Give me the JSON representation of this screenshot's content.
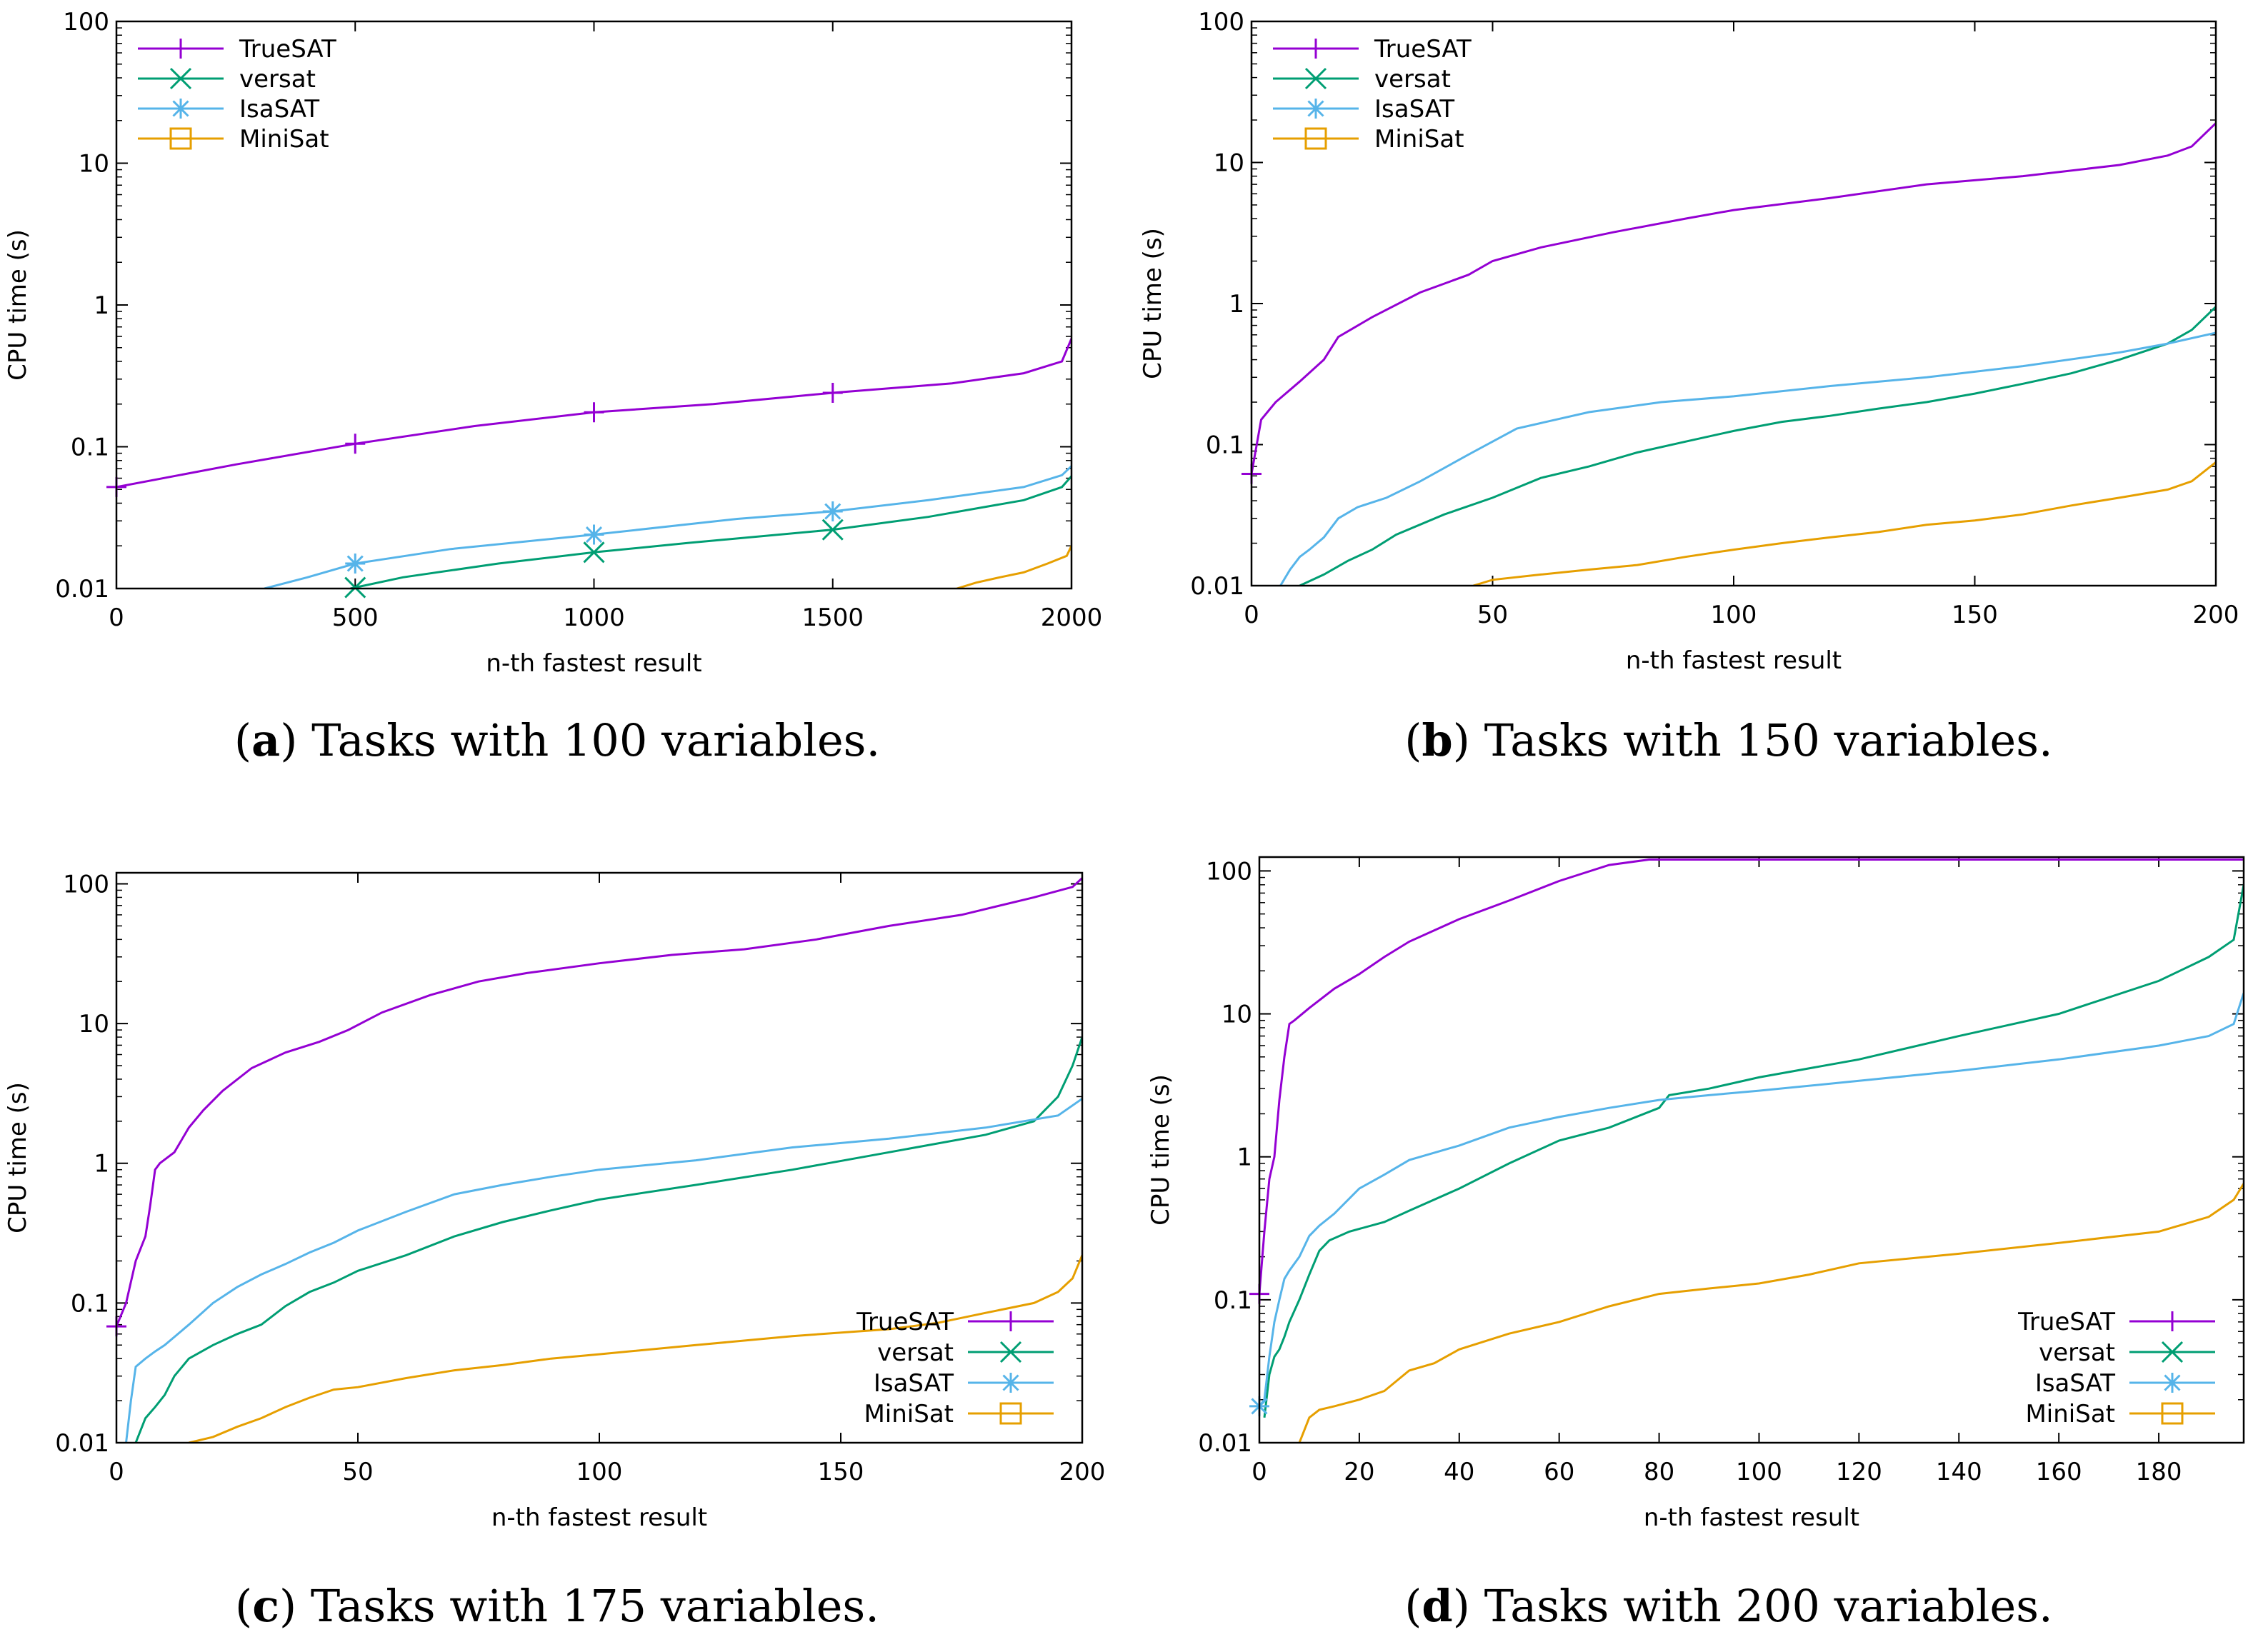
{
  "colors": {
    "TrueSAT": "#9400d3",
    "versat": "#009e73",
    "IsaSAT": "#56b4e9",
    "MiniSat": "#e69f00"
  },
  "chart_data": [
    {
      "type": "line",
      "panel": "a",
      "caption_letter": "a",
      "caption_text": "Tasks with 100 variables.",
      "xlabel": "n-th fastest result",
      "ylabel": "CPU time (s)",
      "xlim": [
        0,
        2000
      ],
      "ylim": [
        0.01,
        100
      ],
      "yscale": "log",
      "xticks": [
        0,
        500,
        1000,
        1500,
        2000
      ],
      "xtick_labels": [
        "0",
        "500",
        "1000",
        "1500",
        "2000"
      ],
      "yticks": [
        0.01,
        0.1,
        1,
        10,
        100
      ],
      "ytick_labels": [
        "0.01",
        "0.1",
        "1",
        "10",
        "100"
      ],
      "legend_position": "top-left",
      "series": [
        {
          "name": "TrueSAT",
          "marker": "plus",
          "x": [
            0,
            250,
            500,
            750,
            1000,
            1250,
            1500,
            1750,
            1900,
            1980,
            2000
          ],
          "y": [
            0.052,
            0.075,
            0.105,
            0.14,
            0.175,
            0.2,
            0.24,
            0.28,
            0.33,
            0.4,
            0.58
          ],
          "marker_x": [
            0,
            500,
            1000,
            1500
          ]
        },
        {
          "name": "versat",
          "marker": "x",
          "x": [
            490,
            600,
            800,
            1000,
            1200,
            1500,
            1700,
            1900,
            1980,
            2000
          ],
          "y": [
            0.01,
            0.012,
            0.015,
            0.018,
            0.021,
            0.026,
            0.032,
            0.042,
            0.052,
            0.062
          ],
          "marker_x": [
            500,
            1000,
            1500
          ]
        },
        {
          "name": "IsaSAT",
          "marker": "star",
          "x": [
            310,
            400,
            500,
            700,
            1000,
            1300,
            1500,
            1700,
            1900,
            1980,
            2000
          ],
          "y": [
            0.01,
            0.012,
            0.015,
            0.019,
            0.024,
            0.031,
            0.035,
            0.042,
            0.052,
            0.063,
            0.073
          ],
          "marker_x": [
            500,
            1000,
            1500
          ]
        },
        {
          "name": "MiniSat",
          "marker": "square",
          "x": [
            1760,
            1800,
            1850,
            1900,
            1950,
            1990,
            2000
          ],
          "y": [
            0.01,
            0.011,
            0.012,
            0.013,
            0.015,
            0.017,
            0.02
          ],
          "marker_x": []
        }
      ]
    },
    {
      "type": "line",
      "panel": "b",
      "caption_letter": "b",
      "caption_text": "Tasks with 150 variables.",
      "xlabel": "n-th fastest result",
      "ylabel": "CPU time (s)",
      "xlim": [
        0,
        200
      ],
      "ylim": [
        0.01,
        100
      ],
      "yscale": "log",
      "xticks": [
        0,
        50,
        100,
        150,
        200
      ],
      "xtick_labels": [
        "0",
        "50",
        "100",
        "150",
        "200"
      ],
      "yticks": [
        0.01,
        0.1,
        1,
        10,
        100
      ],
      "ytick_labels": [
        "0.01",
        "0.1",
        "1",
        "10",
        "100"
      ],
      "legend_position": "top-left",
      "series": [
        {
          "name": "TrueSAT",
          "marker": "plus",
          "x": [
            0,
            2,
            5,
            10,
            15,
            18,
            25,
            35,
            45,
            50,
            60,
            75,
            90,
            100,
            120,
            140,
            160,
            180,
            190,
            195,
            200
          ],
          "y": [
            0.062,
            0.15,
            0.2,
            0.28,
            0.4,
            0.58,
            0.8,
            1.2,
            1.6,
            2.0,
            2.5,
            3.2,
            4.0,
            4.6,
            5.6,
            7.0,
            8.0,
            9.6,
            11.2,
            13.0,
            19.0
          ],
          "marker_x": [
            0
          ]
        },
        {
          "name": "versat",
          "marker": "x",
          "x": [
            10,
            15,
            20,
            25,
            30,
            40,
            50,
            60,
            70,
            80,
            90,
            100,
            110,
            120,
            130,
            140,
            150,
            160,
            170,
            180,
            190,
            195,
            200
          ],
          "y": [
            0.01,
            0.012,
            0.015,
            0.018,
            0.023,
            0.032,
            0.042,
            0.058,
            0.07,
            0.088,
            0.105,
            0.125,
            0.145,
            0.16,
            0.18,
            0.2,
            0.23,
            0.27,
            0.32,
            0.4,
            0.52,
            0.65,
            0.95
          ],
          "marker_x": []
        },
        {
          "name": "IsaSAT",
          "marker": "star",
          "x": [
            6,
            8,
            10,
            12,
            15,
            18,
            22,
            28,
            35,
            45,
            55,
            70,
            85,
            100,
            120,
            140,
            160,
            180,
            190,
            200
          ],
          "y": [
            0.01,
            0.013,
            0.016,
            0.018,
            0.022,
            0.03,
            0.036,
            0.042,
            0.055,
            0.085,
            0.13,
            0.17,
            0.2,
            0.22,
            0.26,
            0.3,
            0.36,
            0.45,
            0.52,
            0.62
          ],
          "marker_x": []
        },
        {
          "name": "MiniSat",
          "marker": "square",
          "x": [
            46,
            50,
            60,
            70,
            80,
            90,
            100,
            110,
            120,
            130,
            140,
            150,
            160,
            170,
            180,
            190,
            195,
            200
          ],
          "y": [
            0.01,
            0.011,
            0.012,
            0.013,
            0.014,
            0.016,
            0.018,
            0.02,
            0.022,
            0.024,
            0.027,
            0.029,
            0.032,
            0.037,
            0.042,
            0.048,
            0.055,
            0.075
          ],
          "marker_x": []
        }
      ]
    },
    {
      "type": "line",
      "panel": "c",
      "caption_letter": "c",
      "caption_text": "Tasks with 175 variables.",
      "xlabel": "n-th fastest result",
      "ylabel": "CPU time (s)",
      "xlim": [
        0,
        200
      ],
      "ylim": [
        0.01,
        120
      ],
      "yscale": "log",
      "xticks": [
        0,
        50,
        100,
        150,
        200
      ],
      "xtick_labels": [
        "0",
        "50",
        "100",
        "150",
        "200"
      ],
      "yticks": [
        0.01,
        0.1,
        1,
        10,
        100
      ],
      "ytick_labels": [
        "0.01",
        "0.1",
        "1",
        "10",
        "100"
      ],
      "legend_position": "bottom-right",
      "series": [
        {
          "name": "TrueSAT",
          "marker": "plus",
          "x": [
            0,
            2,
            4,
            6,
            7,
            8,
            9,
            12,
            15,
            18,
            22,
            28,
            35,
            42,
            48,
            55,
            65,
            75,
            85,
            100,
            115,
            130,
            145,
            160,
            175,
            190,
            198,
            200
          ],
          "y": [
            0.068,
            0.1,
            0.2,
            0.3,
            0.5,
            0.9,
            1.0,
            1.2,
            1.8,
            2.4,
            3.3,
            4.8,
            6.2,
            7.4,
            9.0,
            12.0,
            16.0,
            20.0,
            23.0,
            27.0,
            31.0,
            34.0,
            40.0,
            50.0,
            60.0,
            80.0,
            95.0,
            110.0
          ],
          "marker_x": [
            0
          ]
        },
        {
          "name": "versat",
          "marker": "x",
          "x": [
            4,
            6,
            8,
            10,
            12,
            15,
            20,
            25,
            30,
            35,
            40,
            45,
            50,
            60,
            70,
            80,
            90,
            100,
            120,
            140,
            160,
            180,
            190,
            195,
            198,
            200
          ],
          "y": [
            0.01,
            0.015,
            0.018,
            0.022,
            0.03,
            0.04,
            0.05,
            0.06,
            0.07,
            0.095,
            0.12,
            0.14,
            0.17,
            0.22,
            0.3,
            0.38,
            0.46,
            0.55,
            0.7,
            0.9,
            1.2,
            1.6,
            2.0,
            3.0,
            5.0,
            8.0
          ],
          "marker_x": []
        },
        {
          "name": "IsaSAT",
          "marker": "star",
          "x": [
            2,
            3,
            4,
            6,
            8,
            10,
            15,
            20,
            25,
            30,
            35,
            40,
            45,
            50,
            60,
            70,
            80,
            90,
            100,
            120,
            140,
            160,
            180,
            195,
            200
          ],
          "y": [
            0.01,
            0.02,
            0.035,
            0.04,
            0.045,
            0.05,
            0.07,
            0.1,
            0.13,
            0.16,
            0.19,
            0.23,
            0.27,
            0.33,
            0.45,
            0.6,
            0.7,
            0.8,
            0.9,
            1.05,
            1.3,
            1.5,
            1.8,
            2.2,
            2.9
          ],
          "marker_x": []
        },
        {
          "name": "MiniSat",
          "marker": "square",
          "x": [
            15,
            20,
            25,
            30,
            35,
            40,
            45,
            50,
            60,
            70,
            80,
            90,
            100,
            120,
            140,
            160,
            170,
            180,
            190,
            195,
            198,
            200
          ],
          "y": [
            0.01,
            0.011,
            0.013,
            0.015,
            0.018,
            0.021,
            0.024,
            0.025,
            0.029,
            0.033,
            0.036,
            0.04,
            0.043,
            0.05,
            0.058,
            0.065,
            0.072,
            0.085,
            0.1,
            0.12,
            0.15,
            0.22
          ],
          "marker_x": []
        }
      ]
    },
    {
      "type": "line",
      "panel": "d",
      "caption_letter": "d",
      "caption_text": "Tasks with 200 variables.",
      "xlabel": "n-th fastest result",
      "ylabel": "CPU time (s)",
      "xlim": [
        0,
        197
      ],
      "ylim": [
        0.01,
        125
      ],
      "yscale": "log",
      "xticks": [
        0,
        20,
        40,
        60,
        80,
        100,
        120,
        140,
        160,
        180
      ],
      "xtick_labels": [
        "0",
        "20",
        "40",
        "60",
        "80",
        "100",
        "120",
        "140",
        "160",
        "180"
      ],
      "yticks": [
        0.01,
        0.1,
        1,
        10,
        100
      ],
      "ytick_labels": [
        "0.01",
        "0.1",
        "1",
        "10",
        "100"
      ],
      "legend_position": "bottom-right",
      "series": [
        {
          "name": "TrueSAT",
          "marker": "plus",
          "x": [
            0,
            1,
            2,
            3,
            4,
            5,
            6,
            7,
            10,
            15,
            20,
            25,
            30,
            40,
            50,
            60,
            70,
            78,
            90,
            197
          ],
          "y": [
            0.11,
            0.3,
            0.7,
            1.0,
            2.5,
            5.0,
            8.5,
            9.0,
            11.0,
            15.0,
            19.0,
            25.0,
            32.0,
            46.0,
            62.0,
            85.0,
            110.0,
            120.0,
            120.0,
            120.0
          ],
          "marker_x": [
            0
          ]
        },
        {
          "name": "versat",
          "marker": "x",
          "x": [
            1,
            2,
            3,
            4,
            5,
            6,
            8,
            10,
            12,
            14,
            18,
            25,
            30,
            40,
            50,
            60,
            70,
            80,
            82,
            90,
            100,
            120,
            140,
            160,
            180,
            190,
            195,
            197
          ],
          "y": [
            0.015,
            0.03,
            0.04,
            0.045,
            0.055,
            0.07,
            0.1,
            0.15,
            0.22,
            0.26,
            0.3,
            0.35,
            0.42,
            0.6,
            0.9,
            1.3,
            1.6,
            2.2,
            2.7,
            3.0,
            3.6,
            4.8,
            7.0,
            10.0,
            17.0,
            25.0,
            33.0,
            80.0
          ],
          "marker_x": []
        },
        {
          "name": "IsaSAT",
          "marker": "star",
          "x": [
            0,
            1,
            2,
            3,
            4,
            5,
            6,
            8,
            10,
            12,
            15,
            20,
            25,
            30,
            40,
            50,
            60,
            70,
            80,
            90,
            100,
            120,
            140,
            160,
            180,
            190,
            195,
            197
          ],
          "y": [
            0.018,
            0.02,
            0.04,
            0.07,
            0.1,
            0.14,
            0.16,
            0.2,
            0.28,
            0.33,
            0.4,
            0.6,
            0.75,
            0.95,
            1.2,
            1.6,
            1.9,
            2.2,
            2.5,
            2.7,
            2.9,
            3.4,
            4.0,
            4.8,
            6.0,
            7.0,
            8.5,
            14.0
          ],
          "marker_x": [
            0
          ]
        },
        {
          "name": "MiniSat",
          "marker": "square",
          "x": [
            8,
            10,
            12,
            15,
            20,
            25,
            30,
            35,
            40,
            50,
            60,
            70,
            80,
            90,
            100,
            110,
            120,
            140,
            160,
            180,
            190,
            195,
            197
          ],
          "y": [
            0.01,
            0.015,
            0.017,
            0.018,
            0.02,
            0.023,
            0.032,
            0.036,
            0.045,
            0.058,
            0.07,
            0.09,
            0.11,
            0.12,
            0.13,
            0.15,
            0.18,
            0.21,
            0.25,
            0.3,
            0.38,
            0.5,
            0.65
          ],
          "marker_x": []
        }
      ]
    }
  ]
}
